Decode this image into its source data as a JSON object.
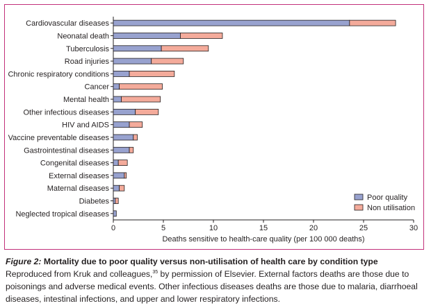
{
  "chart_data": {
    "type": "bar",
    "orientation": "horizontal",
    "stacked": true,
    "categories": [
      "Cardiovascular diseases",
      "Neonatal death",
      "Tuberculosis",
      "Road injuries",
      "Chronic respiratory conditions",
      "Cancer",
      "Mental health",
      "Other infectious diseases",
      "HIV and AIDS",
      "Vaccine preventable diseases",
      "Gastrointestinal diseases",
      "Congenital diseases",
      "External diseases",
      "Maternal diseases",
      "Diabetes",
      "Neglected tropical diseases"
    ],
    "series": [
      {
        "name": "Poor quality",
        "color": "#98a2cf",
        "values": [
          23.6,
          6.7,
          4.8,
          3.8,
          1.6,
          0.6,
          0.8,
          2.2,
          1.6,
          2.0,
          1.6,
          0.5,
          1.1,
          0.6,
          0.2,
          0.3
        ]
      },
      {
        "name": "Non utilisation",
        "color": "#f4ab9b",
        "values": [
          4.6,
          4.2,
          4.7,
          3.2,
          4.5,
          4.3,
          3.9,
          2.3,
          1.3,
          0.4,
          0.4,
          0.9,
          0.2,
          0.5,
          0.3,
          0.0
        ]
      }
    ],
    "xlabel": "Deaths sensitive to health-care quality (per 100 000 deaths)",
    "xlim": [
      0,
      30
    ],
    "xticks": [
      0,
      5,
      10,
      15,
      20,
      25,
      30
    ],
    "grid": false,
    "legend_position": "bottom-right"
  },
  "caption": {
    "label": "Figure 2:",
    "title": "Mortality due to poor quality versus non-utilisation of health care by condition type",
    "body_pre": "Reproduced from Kruk and colleagues,",
    "ref": "35",
    "body_post": " by permission of Elsevier. External factors deaths are those due to poisonings and adverse medical events. Other infectious diseases deaths are those due to malaria, diarrhoeal diseases, intestinal infections, and upper and lower respiratory infections."
  },
  "colors": {
    "frame": "#c2307a",
    "bar_outline": "#231f20"
  }
}
